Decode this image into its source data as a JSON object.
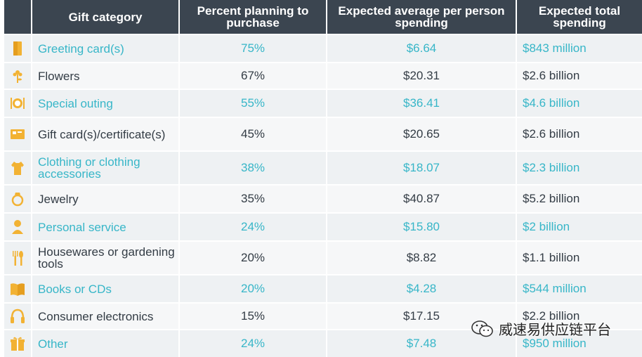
{
  "header": {
    "col_category": "Gift category",
    "col_percent": "Percent planning to purchase",
    "col_avg": "Expected average per person spending",
    "col_total": "Expected total spending"
  },
  "rows": [
    {
      "icon": "greeting-card-icon",
      "category": "Greeting card(s)",
      "percent": "75%",
      "avg": "$6.64",
      "total": "$843 million"
    },
    {
      "icon": "flower-icon",
      "category": "Flowers",
      "percent": "67%",
      "avg": "$20.31",
      "total": "$2.6 billion"
    },
    {
      "icon": "dining-plate-icon",
      "category": "Special outing",
      "percent": "55%",
      "avg": "$36.41",
      "total": "$4.6 billion"
    },
    {
      "icon": "gift-card-icon",
      "category": "Gift card(s)/certificate(s)",
      "percent": "45%",
      "avg": "$20.65",
      "total": "$2.6 billion"
    },
    {
      "icon": "shirt-icon",
      "category": "Clothing or clothing accessories",
      "percent": "38%",
      "avg": "$18.07",
      "total": "$2.3 billion"
    },
    {
      "icon": "ring-icon",
      "category": "Jewelry",
      "percent": "35%",
      "avg": "$40.87",
      "total": "$5.2 billion"
    },
    {
      "icon": "person-icon",
      "category": "Personal service",
      "percent": "24%",
      "avg": "$15.80",
      "total": "$2 billion"
    },
    {
      "icon": "utensils-icon",
      "category": "Housewares or gardening tools",
      "percent": "20%",
      "avg": "$8.82",
      "total": "$1.1 billion"
    },
    {
      "icon": "book-icon",
      "category": "Books or CDs",
      "percent": "20%",
      "avg": "$4.28",
      "total": "$544 million"
    },
    {
      "icon": "headphones-icon",
      "category": "Consumer electronics",
      "percent": "15%",
      "avg": "$17.15",
      "total": "$2.2 billion"
    },
    {
      "icon": "gift-box-icon",
      "category": "Other",
      "percent": "24%",
      "avg": "$7.48",
      "total": "$950 million"
    }
  ],
  "watermark": {
    "text": "威速易供应链平台",
    "icon": "wechat-icon"
  },
  "colors": {
    "header_bg": "#3b4550",
    "accent": "#37b6c8",
    "icon": "#f2b233",
    "dark_text": "#333c45"
  }
}
